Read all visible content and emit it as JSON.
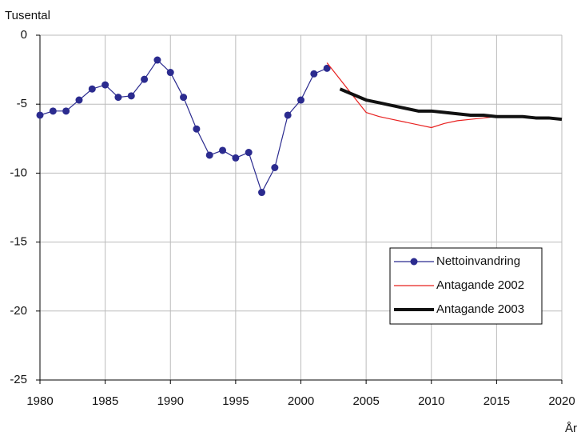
{
  "chart_data": {
    "type": "line",
    "ylabel": "Tusental",
    "xlabel": "År",
    "x": [
      1980,
      1981,
      1982,
      1983,
      1984,
      1985,
      1986,
      1987,
      1988,
      1989,
      1990,
      1991,
      1992,
      1993,
      1994,
      1995,
      1996,
      1997,
      1998,
      1999,
      2000,
      2001,
      2002,
      2003,
      2004,
      2005,
      2006,
      2007,
      2008,
      2009,
      2010,
      2011,
      2012,
      2013,
      2014,
      2015,
      2016,
      2017,
      2018,
      2019,
      2020
    ],
    "series": [
      {
        "name": "Nettoinvandring",
        "color": "#2b2b8f",
        "marker": true,
        "width": 1.2,
        "values": [
          -5.8,
          -5.5,
          -5.5,
          -4.7,
          -3.9,
          -3.6,
          -4.5,
          -4.4,
          -3.2,
          -1.8,
          -2.7,
          -4.5,
          -6.8,
          -8.7,
          -8.35,
          -8.9,
          -8.5,
          -11.4,
          -9.6,
          -5.8,
          -4.7,
          -2.8,
          -2.4,
          null,
          null,
          null,
          null,
          null,
          null,
          null,
          null,
          null,
          null,
          null,
          null,
          null,
          null,
          null,
          null,
          null,
          null
        ]
      },
      {
        "name": "Antagande 2002",
        "color": "#e8201f",
        "marker": false,
        "width": 1.2,
        "values": [
          null,
          null,
          null,
          null,
          null,
          null,
          null,
          null,
          null,
          null,
          null,
          null,
          null,
          null,
          null,
          null,
          null,
          null,
          null,
          null,
          null,
          null,
          -2.0,
          -3.2,
          -4.4,
          -5.6,
          -5.9,
          -6.1,
          -6.3,
          -6.5,
          -6.7,
          -6.4,
          -6.2,
          -6.1,
          -6.0,
          -5.9,
          -5.9,
          -5.9,
          -6.0,
          -6.0,
          -6.1
        ]
      },
      {
        "name": "Antagande 2003",
        "color": "#111111",
        "marker": false,
        "width": 4,
        "values": [
          null,
          null,
          null,
          null,
          null,
          null,
          null,
          null,
          null,
          null,
          null,
          null,
          null,
          null,
          null,
          null,
          null,
          null,
          null,
          null,
          null,
          null,
          null,
          -3.9,
          -4.3,
          -4.7,
          -4.9,
          -5.1,
          -5.3,
          -5.5,
          -5.5,
          -5.6,
          -5.7,
          -5.8,
          -5.8,
          -5.9,
          -5.9,
          -5.9,
          -6.0,
          -6.0,
          -6.1
        ]
      }
    ],
    "xlim": [
      1980,
      2020
    ],
    "xticks": [
      1980,
      1985,
      1990,
      1995,
      2000,
      2005,
      2010,
      2015,
      2020
    ],
    "ylim": [
      -25,
      0
    ],
    "yticks": [
      0,
      -5,
      -10,
      -15,
      -20,
      -25
    ],
    "grid": true,
    "legend": "lower right"
  }
}
